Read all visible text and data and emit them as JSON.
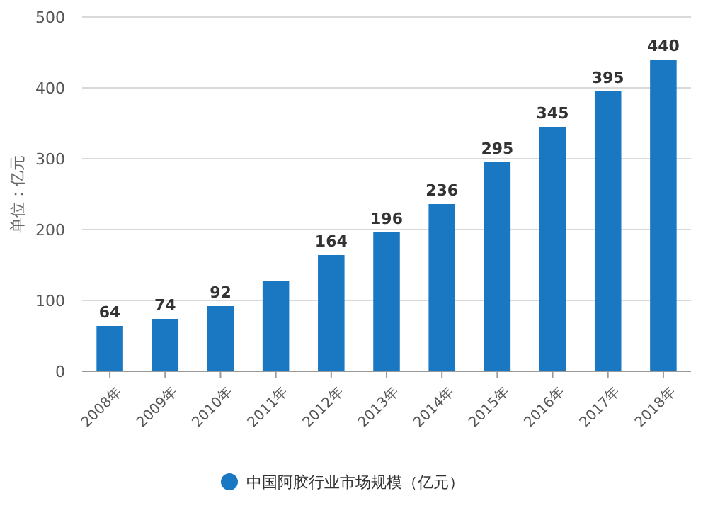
{
  "chart_data": {
    "type": "bar",
    "ylabel": "单位：亿元",
    "categories": [
      "2008年",
      "2009年",
      "2010年",
      "2011年",
      "2012年",
      "2013年",
      "2014年",
      "2015年",
      "2016年",
      "2017年",
      "2018年"
    ],
    "series": [
      {
        "name": "中国阿胶行业市场规模（亿元）",
        "color": "#1a78c2",
        "values": [
          64,
          74,
          92,
          128,
          164,
          196,
          236,
          295,
          345,
          395,
          440
        ],
        "value_labels": [
          "64",
          "74",
          "92",
          null,
          "164",
          "196",
          "236",
          "295",
          "345",
          "395",
          "440"
        ]
      }
    ],
    "ylim": [
      0,
      500
    ],
    "yticks": [
      0,
      100,
      200,
      300,
      400,
      500
    ],
    "grid": "y",
    "legend": "bottom"
  }
}
